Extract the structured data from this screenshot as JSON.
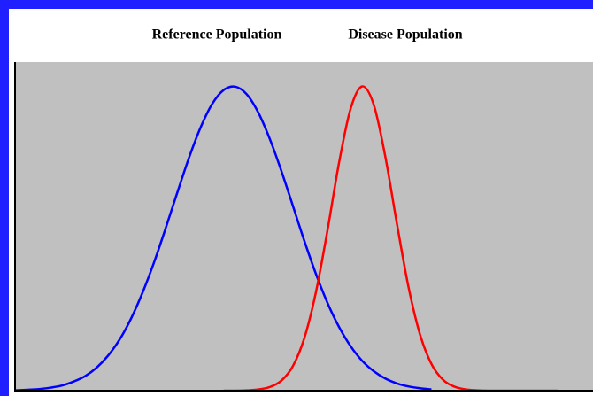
{
  "chart_data": {
    "type": "line",
    "x": [
      0,
      2,
      4,
      6,
      8,
      10,
      12,
      14,
      16,
      18,
      20,
      22,
      24,
      26,
      28,
      30,
      32,
      34,
      36,
      38,
      40,
      42,
      44,
      46,
      48,
      50,
      52,
      54,
      56,
      58,
      60,
      62,
      64,
      66,
      68,
      70,
      72,
      74,
      76,
      78,
      80,
      82,
      84,
      86,
      88,
      90,
      92,
      94,
      96,
      98,
      100
    ],
    "series": [
      {
        "name": "Reference Population",
        "color": "#0000ff",
        "values": [
          0.001,
          0.003,
          0.005,
          0.01,
          0.017,
          0.03,
          0.048,
          0.076,
          0.116,
          0.169,
          0.239,
          0.325,
          0.425,
          0.537,
          0.653,
          0.766,
          0.865,
          0.942,
          0.988,
          0.999,
          0.974,
          0.914,
          0.827,
          0.722,
          0.607,
          0.491,
          0.383,
          0.288,
          0.209,
          0.146,
          0.098,
          0.064,
          0.04,
          0.024,
          0.014,
          0.008,
          0.004,
          null,
          null,
          null,
          null,
          null,
          null,
          null,
          null,
          null,
          null,
          null,
          null,
          null,
          null
        ]
      },
      {
        "name": "Disease Population",
        "color": "#ff0000",
        "values": [
          null,
          null,
          null,
          null,
          null,
          null,
          null,
          null,
          null,
          null,
          null,
          null,
          null,
          null,
          null,
          null,
          null,
          null,
          0,
          0,
          0.001,
          0.004,
          0.012,
          0.033,
          0.081,
          0.174,
          0.325,
          0.528,
          0.75,
          0.927,
          1.0,
          0.94,
          0.77,
          0.551,
          0.343,
          0.186,
          0.088,
          0.036,
          0.013,
          0.004,
          0.001,
          0,
          0,
          0,
          0,
          0,
          0,
          0,
          null,
          null,
          null
        ]
      }
    ],
    "xlim": [
      0,
      100
    ],
    "ylim": [
      0,
      1.08
    ]
  }
}
